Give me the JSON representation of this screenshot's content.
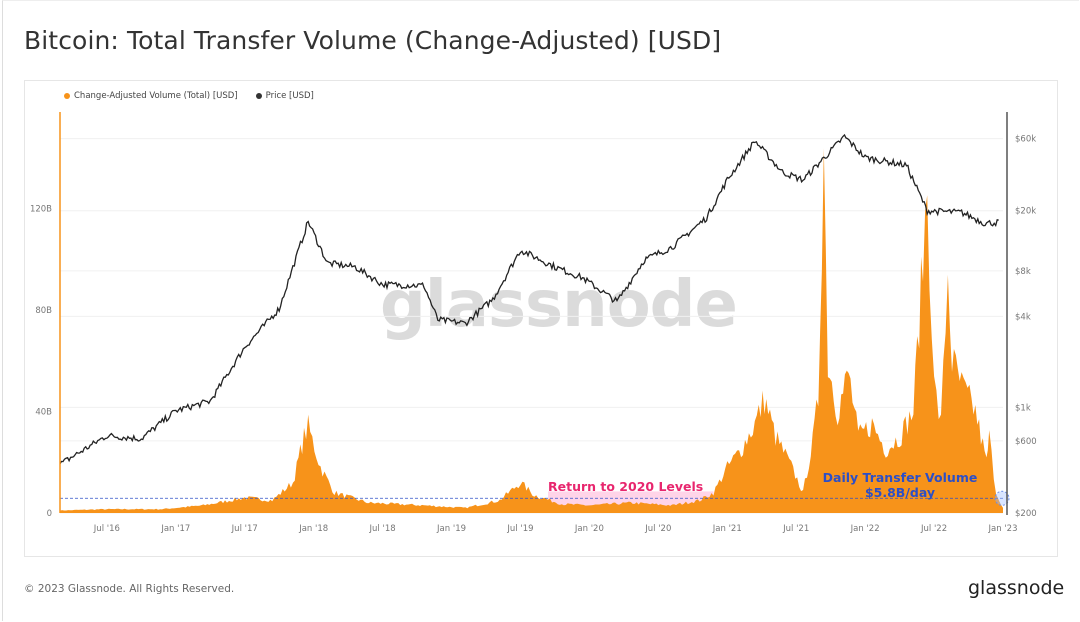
{
  "title": "Bitcoin: Total Transfer Volume (Change-Adjusted) [USD]",
  "footer": {
    "copyright": "© 2023 Glassnode. All Rights Reserved.",
    "logo": "glassnode"
  },
  "watermark": "glassnode",
  "colors": {
    "volume": "#f7931a",
    "price": "#222222",
    "pink": "#e8266e",
    "blue": "#2c4fc7"
  },
  "chart_data": {
    "type": "area",
    "title": "Bitcoin: Total Transfer Volume (Change-Adjusted) [USD]",
    "legend": [
      "Change-Adjusted Volume (Total) [USD]",
      "Price [USD]"
    ],
    "legend_position": "top-left",
    "x_ticks": [
      "Jul '16",
      "Jan '17",
      "Jul '17",
      "Jan '18",
      "Jul '18",
      "Jan '19",
      "Jul '19",
      "Jan '20",
      "Jul '20",
      "Jan '21",
      "Jul '21",
      "Jan '22",
      "Jul '22",
      "Jan '23"
    ],
    "x_tick_values": [
      2016.5,
      2017.0,
      2017.5,
      2018.0,
      2018.5,
      2019.0,
      2019.5,
      2020.0,
      2020.5,
      2021.0,
      2021.5,
      2022.0,
      2022.5,
      2023.0
    ],
    "xlim": [
      2016.16,
      2023.0
    ],
    "y_left": {
      "ticks": [
        "0",
        "40B",
        "80B",
        "120B"
      ],
      "tick_values": [
        0,
        40,
        80,
        120
      ],
      "unit": "B USD",
      "lim": [
        0,
        158
      ]
    },
    "y_right": {
      "ticks": [
        "$200",
        "$600",
        "$1k",
        "$4k",
        "$8k",
        "$20k",
        "$60k"
      ],
      "tick_values": [
        200,
        600,
        1000,
        4000,
        8000,
        20000,
        60000
      ],
      "scale": "log",
      "lim": [
        200,
        90000
      ]
    },
    "series": [
      {
        "name": "Change-Adjusted Volume (Total) [USD]",
        "axis": "left",
        "points": [
          [
            2016.16,
            1
          ],
          [
            2016.5,
            1.5
          ],
          [
            2016.9,
            1.5
          ],
          [
            2017.2,
            3
          ],
          [
            2017.5,
            6
          ],
          [
            2017.7,
            5
          ],
          [
            2017.85,
            12
          ],
          [
            2017.93,
            30
          ],
          [
            2017.96,
            34
          ],
          [
            2018.05,
            18
          ],
          [
            2018.15,
            8
          ],
          [
            2018.4,
            4
          ],
          [
            2018.8,
            3
          ],
          [
            2019.1,
            2
          ],
          [
            2019.35,
            5
          ],
          [
            2019.5,
            12
          ],
          [
            2019.6,
            7
          ],
          [
            2019.8,
            3.5
          ],
          [
            2020.0,
            3
          ],
          [
            2020.3,
            4
          ],
          [
            2020.6,
            3
          ],
          [
            2020.8,
            5
          ],
          [
            2020.9,
            8
          ],
          [
            2021.0,
            18
          ],
          [
            2021.1,
            25
          ],
          [
            2021.2,
            35
          ],
          [
            2021.27,
            45
          ],
          [
            2021.35,
            30
          ],
          [
            2021.45,
            20
          ],
          [
            2021.55,
            8
          ],
          [
            2021.62,
            28
          ],
          [
            2021.66,
            45
          ],
          [
            2021.7,
            145
          ],
          [
            2021.73,
            60
          ],
          [
            2021.8,
            40
          ],
          [
            2021.88,
            55
          ],
          [
            2021.95,
            30
          ],
          [
            2022.05,
            35
          ],
          [
            2022.15,
            25
          ],
          [
            2022.25,
            30
          ],
          [
            2022.35,
            40
          ],
          [
            2022.42,
            100
          ],
          [
            2022.45,
            128
          ],
          [
            2022.5,
            50
          ],
          [
            2022.55,
            35
          ],
          [
            2022.6,
            95
          ],
          [
            2022.63,
            60
          ],
          [
            2022.7,
            50
          ],
          [
            2022.8,
            40
          ],
          [
            2022.88,
            20
          ],
          [
            2022.9,
            30
          ],
          [
            2022.95,
            8
          ],
          [
            2023.0,
            2
          ]
        ]
      },
      {
        "name": "Price [USD]",
        "axis": "right",
        "points": [
          [
            2016.16,
            420
          ],
          [
            2016.5,
            650
          ],
          [
            2016.75,
            620
          ],
          [
            2017.0,
            950
          ],
          [
            2017.25,
            1100
          ],
          [
            2017.5,
            2500
          ],
          [
            2017.75,
            4500
          ],
          [
            2017.96,
            17000
          ],
          [
            2018.1,
            9000
          ],
          [
            2018.3,
            8500
          ],
          [
            2018.5,
            6500
          ],
          [
            2018.8,
            6400
          ],
          [
            2018.9,
            3800
          ],
          [
            2019.1,
            3600
          ],
          [
            2019.3,
            5200
          ],
          [
            2019.5,
            11000
          ],
          [
            2019.75,
            8500
          ],
          [
            2019.95,
            7200
          ],
          [
            2020.2,
            5000
          ],
          [
            2020.4,
            9500
          ],
          [
            2020.6,
            11500
          ],
          [
            2020.85,
            18000
          ],
          [
            2021.0,
            32000
          ],
          [
            2021.2,
            58000
          ],
          [
            2021.4,
            36000
          ],
          [
            2021.55,
            32000
          ],
          [
            2021.85,
            62000
          ],
          [
            2022.0,
            45000
          ],
          [
            2022.3,
            40000
          ],
          [
            2022.45,
            20000
          ],
          [
            2022.7,
            19500
          ],
          [
            2022.87,
            16500
          ],
          [
            2022.98,
            16800
          ]
        ]
      }
    ],
    "annotations": {
      "reference_line": {
        "value": 5.8,
        "label_line1": "Daily Transfer Volume",
        "label_line2": "$5.8B/day"
      },
      "highlight_range": {
        "from": 2019.7,
        "to": 2020.9,
        "label": "Return to 2020 Levels"
      }
    }
  }
}
